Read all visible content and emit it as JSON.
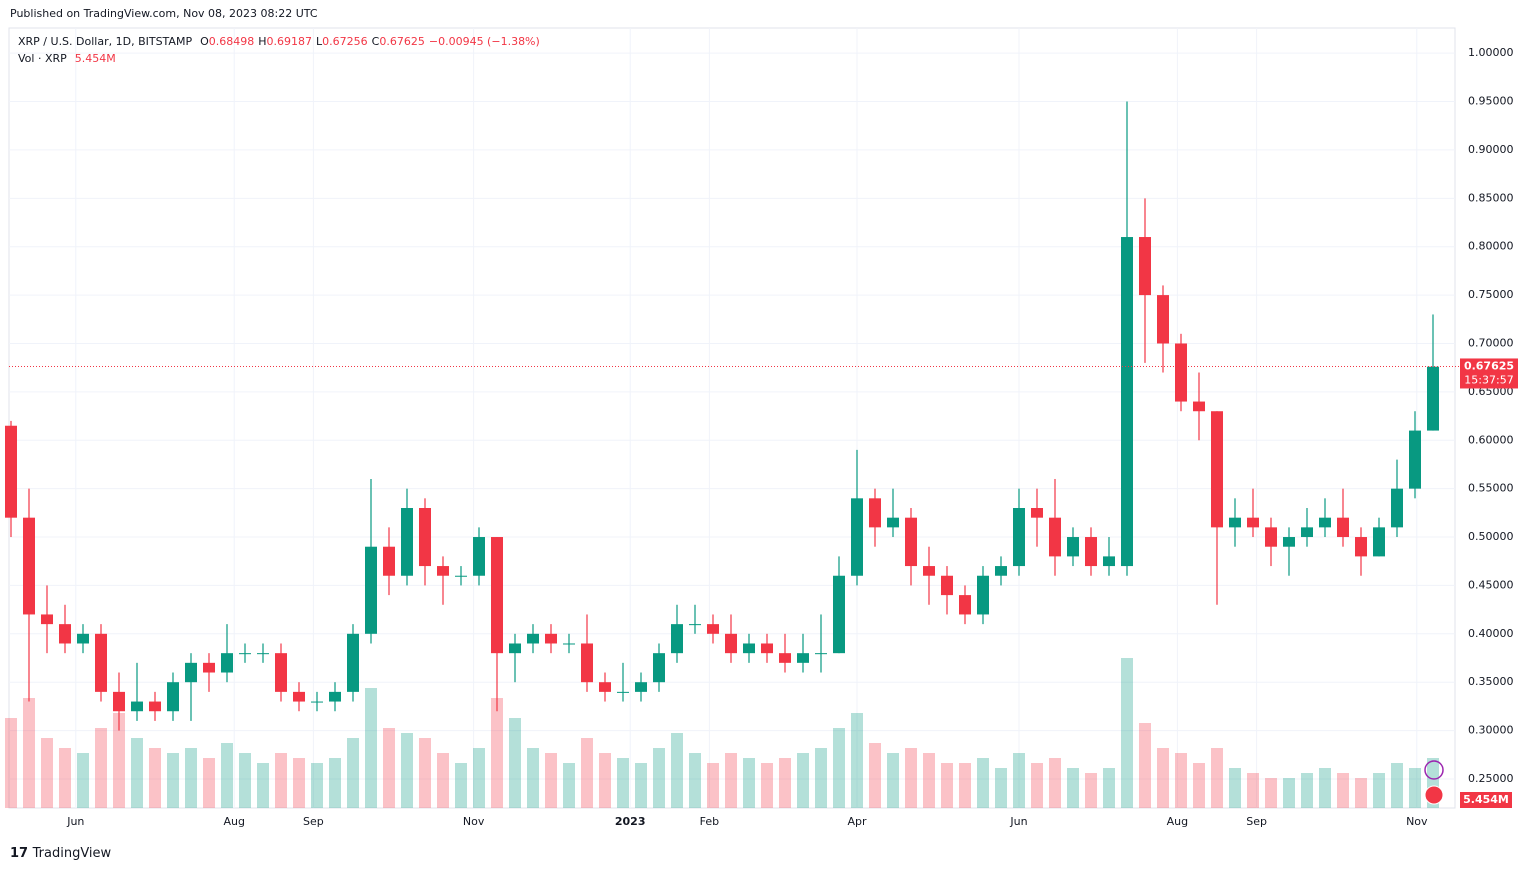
{
  "published": "Published on TradingView.com, Nov 08, 2023 08:22 UTC",
  "brand": "TradingView",
  "chart_data": {
    "type": "candlestick",
    "title": "XRP / U.S. Dollar, 1D, BITSTAMP",
    "legend_values": [
      {
        "label": "O",
        "value": "0.68498"
      },
      {
        "label": "H",
        "value": "0.69187"
      },
      {
        "label": "L",
        "value": "0.67256"
      },
      {
        "label": "C",
        "value": "0.67625"
      }
    ],
    "change": "−0.00945 (−1.38%)",
    "volume_title": "Vol · XRP",
    "volume_last": "5.454M",
    "last_price": 0.67625,
    "countdown": "15:37:57",
    "up_color": "#089981",
    "down_color": "#f23645",
    "open": [
      0.615,
      0.52,
      0.42,
      0.41,
      0.39,
      0.4,
      0.34,
      0.32,
      0.33,
      0.32,
      0.35,
      0.37,
      0.36,
      0.38,
      0.38,
      0.38,
      0.34,
      0.33,
      0.33,
      0.34,
      0.4,
      0.49,
      0.46,
      0.53,
      0.47,
      0.46,
      0.46,
      0.5,
      0.38,
      0.39,
      0.4,
      0.39,
      0.39,
      0.35,
      0.34,
      0.34,
      0.35,
      0.38,
      0.41,
      0.41,
      0.4,
      0.38,
      0.39,
      0.38,
      0.37,
      0.38,
      0.38,
      0.46,
      0.54,
      0.51,
      0.52,
      0.47,
      0.46,
      0.44,
      0.42,
      0.46,
      0.47,
      0.53,
      0.52,
      0.48,
      0.5,
      0.47,
      0.47,
      0.81,
      0.75,
      0.7,
      0.64,
      0.63,
      0.51,
      0.52,
      0.51,
      0.49,
      0.5,
      0.51,
      0.52,
      0.5,
      0.48,
      0.51,
      0.55,
      0.61
    ],
    "high": [
      0.62,
      0.55,
      0.45,
      0.43,
      0.41,
      0.41,
      0.36,
      0.37,
      0.34,
      0.36,
      0.38,
      0.38,
      0.41,
      0.39,
      0.39,
      0.39,
      0.35,
      0.34,
      0.35,
      0.41,
      0.56,
      0.51,
      0.55,
      0.54,
      0.48,
      0.47,
      0.51,
      0.5,
      0.4,
      0.41,
      0.41,
      0.4,
      0.42,
      0.36,
      0.37,
      0.36,
      0.39,
      0.43,
      0.43,
      0.42,
      0.42,
      0.4,
      0.4,
      0.4,
      0.4,
      0.42,
      0.48,
      0.59,
      0.55,
      0.55,
      0.53,
      0.49,
      0.47,
      0.45,
      0.47,
      0.48,
      0.55,
      0.55,
      0.56,
      0.51,
      0.51,
      0.5,
      0.95,
      0.85,
      0.76,
      0.71,
      0.67,
      0.63,
      0.54,
      0.55,
      0.52,
      0.51,
      0.53,
      0.54,
      0.55,
      0.51,
      0.52,
      0.58,
      0.63,
      0.73
    ],
    "low": [
      0.5,
      0.33,
      0.38,
      0.38,
      0.38,
      0.33,
      0.3,
      0.31,
      0.31,
      0.31,
      0.31,
      0.34,
      0.35,
      0.37,
      0.37,
      0.33,
      0.32,
      0.32,
      0.32,
      0.33,
      0.39,
      0.44,
      0.45,
      0.45,
      0.43,
      0.45,
      0.45,
      0.32,
      0.35,
      0.38,
      0.38,
      0.38,
      0.34,
      0.33,
      0.33,
      0.33,
      0.34,
      0.37,
      0.4,
      0.39,
      0.37,
      0.37,
      0.37,
      0.36,
      0.36,
      0.36,
      0.38,
      0.45,
      0.49,
      0.5,
      0.45,
      0.43,
      0.42,
      0.41,
      0.41,
      0.45,
      0.46,
      0.49,
      0.46,
      0.47,
      0.46,
      0.46,
      0.46,
      0.68,
      0.67,
      0.63,
      0.6,
      0.43,
      0.49,
      0.5,
      0.47,
      0.46,
      0.49,
      0.5,
      0.49,
      0.46,
      0.48,
      0.5,
      0.54,
      0.61
    ],
    "close": [
      0.52,
      0.42,
      0.41,
      0.39,
      0.4,
      0.34,
      0.32,
      0.33,
      0.32,
      0.35,
      0.37,
      0.36,
      0.38,
      0.38,
      0.38,
      0.34,
      0.33,
      0.33,
      0.34,
      0.4,
      0.49,
      0.46,
      0.53,
      0.47,
      0.46,
      0.46,
      0.5,
      0.38,
      0.39,
      0.4,
      0.39,
      0.39,
      0.35,
      0.34,
      0.34,
      0.35,
      0.38,
      0.41,
      0.41,
      0.4,
      0.38,
      0.39,
      0.38,
      0.37,
      0.38,
      0.38,
      0.46,
      0.54,
      0.51,
      0.52,
      0.47,
      0.46,
      0.44,
      0.42,
      0.46,
      0.47,
      0.53,
      0.52,
      0.48,
      0.5,
      0.47,
      0.48,
      0.81,
      0.75,
      0.7,
      0.64,
      0.63,
      0.51,
      0.52,
      0.51,
      0.49,
      0.5,
      0.51,
      0.52,
      0.5,
      0.48,
      0.51,
      0.55,
      0.61,
      0.676
    ],
    "volume": [
      90,
      110,
      70,
      60,
      55,
      80,
      95,
      70,
      60,
      55,
      60,
      50,
      65,
      55,
      45,
      55,
      50,
      45,
      50,
      70,
      120,
      80,
      75,
      70,
      55,
      45,
      60,
      110,
      90,
      60,
      55,
      45,
      70,
      55,
      50,
      45,
      60,
      75,
      55,
      45,
      55,
      50,
      45,
      50,
      55,
      60,
      80,
      95,
      65,
      55,
      60,
      55,
      45,
      45,
      50,
      40,
      55,
      45,
      50,
      40,
      35,
      40,
      150,
      85,
      60,
      55,
      45,
      60,
      40,
      35,
      30,
      30,
      35,
      40,
      35,
      30,
      35,
      45,
      40,
      50
    ],
    "ylim": [
      0.22,
      1.026
    ],
    "yticks": [
      {
        "value": 0.25,
        "label": "0.25000"
      },
      {
        "value": 0.3,
        "label": "0.30000"
      },
      {
        "value": 0.35,
        "label": "0.35000"
      },
      {
        "value": 0.4,
        "label": "0.40000"
      },
      {
        "value": 0.45,
        "label": "0.45000"
      },
      {
        "value": 0.5,
        "label": "0.50000"
      },
      {
        "value": 0.55,
        "label": "0.55000"
      },
      {
        "value": 0.6,
        "label": "0.60000"
      },
      {
        "value": 0.65,
        "label": "0.65000"
      },
      {
        "value": 0.7,
        "label": "0.70000"
      },
      {
        "value": 0.75,
        "label": "0.75000"
      },
      {
        "value": 0.8,
        "label": "0.80000"
      },
      {
        "value": 0.85,
        "label": "0.85000"
      },
      {
        "value": 0.9,
        "label": "0.90000"
      },
      {
        "value": 0.95,
        "label": "0.95000"
      },
      {
        "value": 1,
        "label": "1.00000"
      }
    ],
    "xticks": [
      {
        "value": 3.6,
        "label": "Jun"
      },
      {
        "value": 12.4,
        "label": "Aug"
      },
      {
        "value": 16.8,
        "label": "Sep"
      },
      {
        "value": 25.7,
        "label": "Nov"
      },
      {
        "value": 34.4,
        "label": "2023"
      },
      {
        "value": 38.8,
        "label": "Feb"
      },
      {
        "value": 47.0,
        "label": "Apr"
      },
      {
        "value": 56.0,
        "label": "Jun"
      },
      {
        "value": 64.8,
        "label": "Aug"
      },
      {
        "value": 69.2,
        "label": "Sep"
      },
      {
        "value": 78.1,
        "label": "Nov"
      }
    ],
    "grid": true
  }
}
